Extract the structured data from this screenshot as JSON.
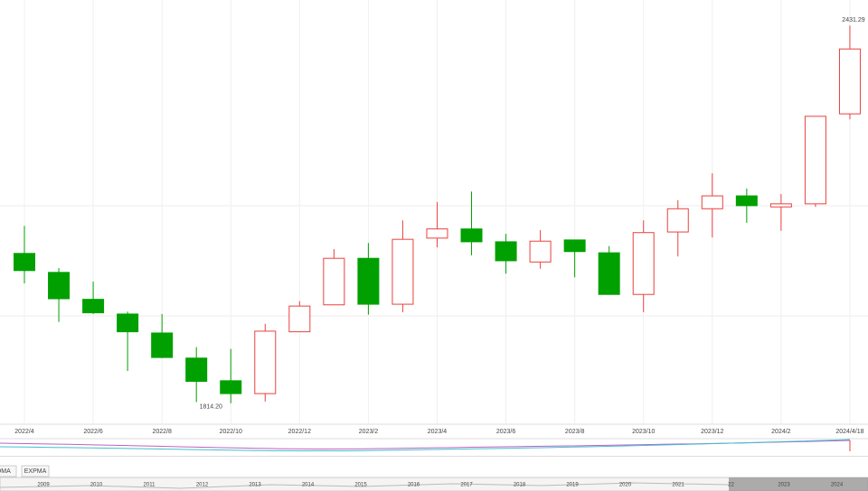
{
  "chart_data": {
    "type": "candlestick",
    "categories": [
      "2022/4",
      null,
      "2022/6",
      null,
      "2022/8",
      null,
      "2022/10",
      null,
      "2022/12",
      null,
      "2023/2",
      null,
      "2023/4",
      null,
      "2023/6",
      null,
      "2023/8",
      null,
      "2023/10",
      null,
      "2023/12",
      null,
      "2024/2",
      null,
      "2024/4/18"
    ],
    "open": [
      2059,
      2028,
      1984,
      1960,
      1929,
      1888,
      1851,
      1830,
      1931,
      1975,
      2051,
      1976,
      2084,
      2099,
      2078,
      2045,
      2081,
      2060,
      1992,
      2094,
      2132,
      2153,
      2135,
      2140,
      2287
    ],
    "high": [
      2104,
      2035,
      2013,
      1964,
      1960,
      1906,
      1903,
      1944,
      1981,
      2066,
      2076,
      2113,
      2143,
      2160,
      2091,
      2097,
      2081,
      2071,
      2113,
      2146,
      2190,
      2165,
      2156,
      2283,
      2431.29
    ],
    "low": [
      2010,
      1947,
      1960,
      1867,
      1888,
      1816,
      1814.2,
      1817,
      1931,
      1975,
      1959,
      1963,
      2069,
      2056,
      2026,
      2034,
      2020,
      1992,
      1963,
      2054,
      2085,
      2109,
      2096,
      2135,
      2278
    ],
    "close": [
      2031,
      1985,
      1962,
      1931,
      1889,
      1850,
      1830,
      1932,
      1973,
      2051,
      1976,
      2082,
      2099,
      2078,
      2047,
      2079,
      2062,
      1992,
      2093,
      2132,
      2153,
      2137,
      2140,
      2283,
      2393
    ],
    "up_color": "#e8423f",
    "down_color": "#00a000",
    "ylim": [
      1780,
      2473
    ],
    "annotations": [
      {
        "text": "2431.29"
      },
      {
        "text": "1814.20"
      }
    ]
  },
  "indicator_tabs": [
    "DMA",
    "EXPMA"
  ],
  "navigator": {
    "years": [
      "2009",
      "2010",
      "2011",
      "2012",
      "2013",
      "2014",
      "2015",
      "2016",
      "2017",
      "2018",
      "2019",
      "2020",
      "2021",
      "22",
      "2023",
      "2024"
    ]
  }
}
